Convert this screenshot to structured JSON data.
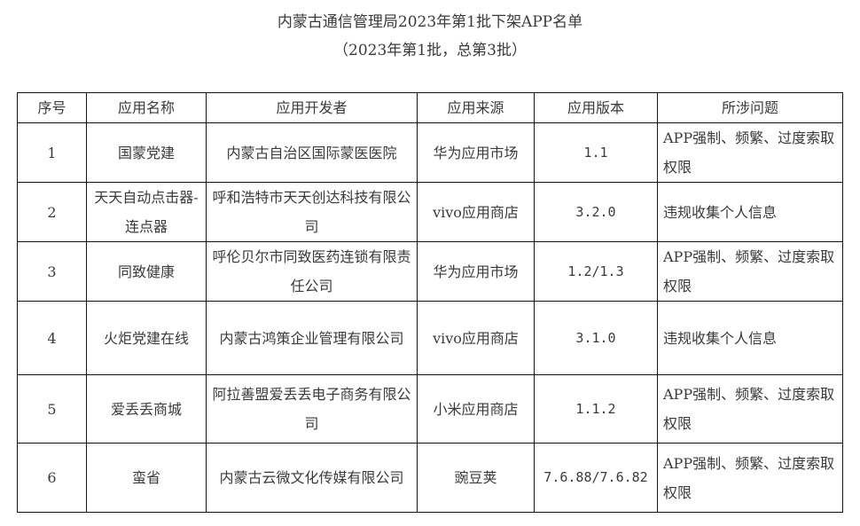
{
  "title": "内蒙古通信管理局2023年第1批下架APP名单",
  "subtitle": "（2023年第1批，总第3批）",
  "table": {
    "headers": [
      "序号",
      "应用名称",
      "应用开发者",
      "应用来源",
      "应用版本",
      "所涉问题"
    ],
    "rows": [
      {
        "no": "1",
        "name": "国蒙党建",
        "developer": "内蒙古自治区国际蒙医医院",
        "source": "华为应用市场",
        "version": "1.1",
        "issue": "APP强制、频繁、过度索取权限"
      },
      {
        "no": "2",
        "name": "天天自动点击器-连点器",
        "developer": "呼和浩特市天天创达科技有限公司",
        "source": "vivo应用商店",
        "version": "3.2.0",
        "issue": "违规收集个人信息"
      },
      {
        "no": "3",
        "name": "同致健康",
        "developer": "呼伦贝尔市同致医药连锁有限责任公司",
        "source": "华为应用市场",
        "version": "1.2/1.3",
        "issue": "APP强制、频繁、过度索取权限"
      },
      {
        "no": "4",
        "name": "火炬党建在线",
        "developer": "内蒙古鸿策企业管理有限公司",
        "source": "vivo应用商店",
        "version": "3.1.0",
        "issue": "违规收集个人信息"
      },
      {
        "no": "5",
        "name": "爱丢丢商城",
        "developer": "阿拉善盟爱丢丢电子商务有限公司",
        "source": "小米应用商店",
        "version": "1.1.2",
        "issue": "APP强制、频繁、过度索取权限"
      },
      {
        "no": "6",
        "name": "蛮省",
        "developer": "内蒙古云微文化传媒有限公司",
        "source": "豌豆荚",
        "version": "7.6.88/7.6.82",
        "issue": "APP强制、频繁、过度索取权限"
      }
    ]
  }
}
